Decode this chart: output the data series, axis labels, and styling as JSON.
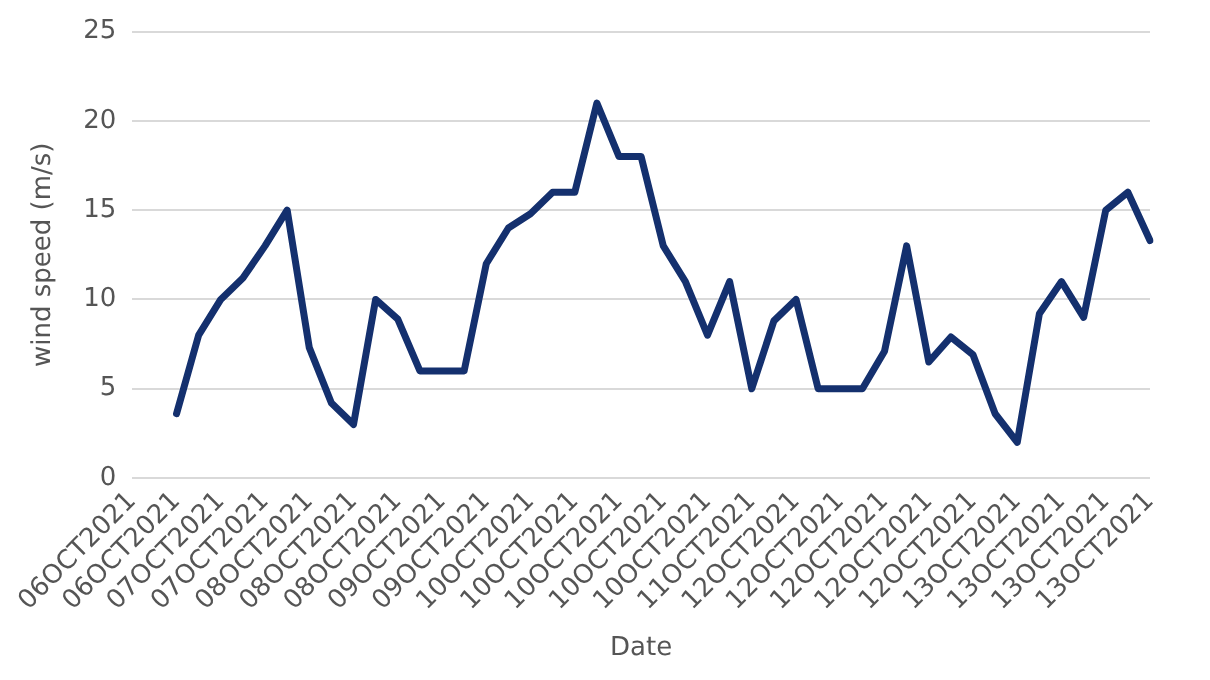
{
  "chart_data": {
    "type": "line",
    "xlabel": "Date",
    "ylabel": "wind speed (m/s)",
    "categories": [
      "06OCT2021",
      null,
      "06OCT2021",
      null,
      "07OCT2021",
      null,
      "07OCT2021",
      null,
      "08OCT2021",
      null,
      "08OCT2021",
      null,
      "08OCT2021",
      null,
      "09OCT2021",
      null,
      "09OCT2021",
      null,
      "10OCT2021",
      null,
      "10OCT2021",
      null,
      "10OCT2021",
      null,
      "10OCT2021",
      null,
      "10OCT2021",
      null,
      "11OCT2021",
      null,
      "12OCT2021",
      null,
      "12OCT2021",
      null,
      "12OCT2021",
      null,
      "12OCT2021",
      null,
      "12OCT2021",
      null,
      "13OCT2021",
      null,
      "13OCT2021",
      null,
      "13OCT2021",
      null,
      "13OCT2021"
    ],
    "series": [
      {
        "color": "#14306e",
        "values": [
          null,
          null,
          3.6,
          8,
          10,
          11.2,
          13,
          15,
          7.3,
          4.2,
          3,
          10,
          8.9,
          6,
          6,
          6,
          12,
          14,
          14.8,
          16,
          16,
          21,
          18,
          18,
          13,
          11,
          8,
          11,
          5,
          8.8,
          10,
          5,
          5,
          5,
          7.1,
          13,
          6.5,
          7.9,
          6.9,
          3.6,
          2,
          9.2,
          11,
          9,
          15,
          16,
          13.3
        ]
      }
    ],
    "ylim": [
      0,
      25
    ],
    "yticks": [
      0,
      5,
      10,
      15,
      20,
      25
    ],
    "grid": "y",
    "legend": false,
    "marker": "none",
    "line_style": "solid"
  }
}
